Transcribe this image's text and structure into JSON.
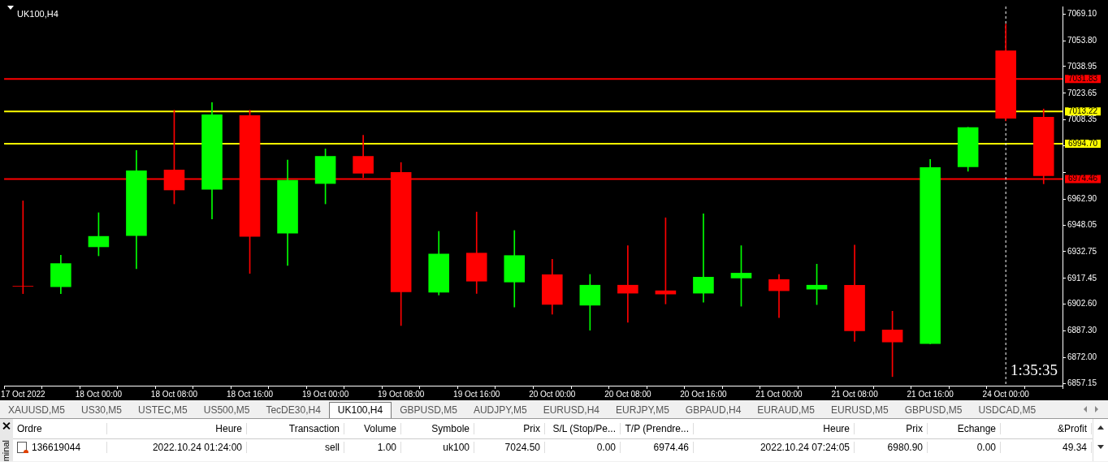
{
  "chart_data": {
    "type": "candlestick",
    "title": "UK100,H4",
    "categories": [
      "17 Oct 2022",
      null,
      "18 Oct 00:00",
      null,
      "18 Oct 08:00",
      null,
      "18 Oct 16:00",
      null,
      "19 Oct 00:00",
      null,
      "19 Oct 08:00",
      null,
      "19 Oct 16:00",
      null,
      "20 Oct 00:00",
      null,
      "20 Oct 08:00",
      null,
      "20 Oct 16:00",
      null,
      "21 Oct 00:00",
      null,
      "21 Oct 08:00",
      null,
      "21 Oct 16:00",
      null,
      "24 Oct 00:00",
      null
    ],
    "ohlc": [
      [
        6913.2,
        6961.9,
        6908.7,
        6912.8
      ],
      [
        6912.5,
        6930.7,
        6908.7,
        6926.1
      ],
      [
        6935.4,
        6955.1,
        6930.4,
        6941.7
      ],
      [
        6941.8,
        6990.8,
        6923.0,
        6979.3
      ],
      [
        6979.8,
        7013.9,
        6960.2,
        6968.0
      ],
      [
        6968.4,
        7018.3,
        6951.5,
        7011.4
      ],
      [
        7011.0,
        7013.9,
        6920.3,
        6941.4
      ],
      [
        6943.2,
        6985.3,
        6924.9,
        6973.8
      ],
      [
        6971.7,
        6991.7,
        6960.2,
        6987.6
      ],
      [
        6987.6,
        6999.5,
        6975.3,
        6977.6
      ],
      [
        6978.4,
        6983.9,
        6890.4,
        6909.6
      ],
      [
        6909.3,
        6944.4,
        6907.9,
        6931.6
      ],
      [
        6932.1,
        6955.5,
        6908.8,
        6915.7
      ],
      [
        6915.2,
        6944.9,
        6901.0,
        6930.7
      ],
      [
        6919.7,
        6928.4,
        6896.9,
        6902.4
      ],
      [
        6901.9,
        6919.7,
        6887.7,
        6913.7
      ],
      [
        6913.7,
        6936.2,
        6892.3,
        6908.8
      ],
      [
        6910.5,
        6952.2,
        6902.8,
        6908.3
      ],
      [
        6908.8,
        6954.5,
        6903.8,
        6918.3
      ],
      [
        6917.5,
        6936.2,
        6901.5,
        6920.6
      ],
      [
        6916.9,
        6919.7,
        6895.0,
        6910.2
      ],
      [
        6911.1,
        6925.6,
        6902.4,
        6913.7
      ],
      [
        6913.7,
        6936.6,
        6881.3,
        6887.2
      ],
      [
        6888.0,
        6898.6,
        6861.1,
        6880.8
      ],
      [
        6879.9,
        6985.7,
        6879.9,
        6981.2
      ],
      [
        6981.3,
        7004.1,
        6978.9,
        7004.1
      ],
      [
        7048.1,
        7063.3,
        7007.8,
        7009.1
      ],
      [
        7010.1,
        7014.6,
        6971.7,
        6976.2
      ]
    ],
    "colors": [
      "#ff0000",
      "#00ff00",
      "#00ff00",
      "#00ff00",
      "#ff0000",
      "#00ff00",
      "#ff0000",
      "#00ff00",
      "#00ff00",
      "#ff0000",
      "#ff0000",
      "#00ff00",
      "#ff0000",
      "#00ff00",
      "#ff0000",
      "#00ff00",
      "#ff0000",
      "#ff0000",
      "#00ff00",
      "#00ff00",
      "#ff0000",
      "#00ff00",
      "#ff0000",
      "#ff0000",
      "#00ff00",
      "#00ff00",
      "#ff0000",
      "#ff0000"
    ],
    "ylim": [
      6855.9,
      7073.4
    ],
    "yticks": [
      {
        "value": 7069.1,
        "label": "7069.10"
      },
      {
        "value": 7053.8,
        "label": "7053.80"
      },
      {
        "value": 7038.95,
        "label": "7038.95"
      },
      {
        "value": 7023.65,
        "label": "7023.65"
      },
      {
        "value": 7008.35,
        "label": "7008.35"
      },
      {
        "value": 6993.5,
        "label": null
      },
      {
        "value": 6978.2,
        "label": null
      },
      {
        "value": 6962.9,
        "label": "6962.90"
      },
      {
        "value": 6948.05,
        "label": "6948.05"
      },
      {
        "value": 6932.75,
        "label": "6932.75"
      },
      {
        "value": 6917.45,
        "label": "6917.45"
      },
      {
        "value": 6902.6,
        "label": "6902.60"
      },
      {
        "value": 6887.3,
        "label": "6887.30"
      },
      {
        "value": 6872.0,
        "label": "6872.00"
      },
      {
        "value": 6857.15,
        "label": "6857.15"
      }
    ],
    "ref_lines": [
      {
        "axis": "y",
        "value": 7031.83,
        "label": "7031.83",
        "color": "#ff0000"
      },
      {
        "axis": "y",
        "value": 7013.22,
        "label": "7013.22",
        "color": "#ffff00"
      },
      {
        "axis": "y",
        "value": 6994.7,
        "label": "6994.70",
        "color": "#ffff00"
      },
      {
        "axis": "y",
        "value": 6974.46,
        "label": "6974.46",
        "color": "#ff0000"
      },
      {
        "axis": "x",
        "value": "24 Oct 00:00",
        "color": "#ffffff",
        "line_style": "dashed"
      }
    ],
    "legend": false,
    "annotations": [
      "1:35:35",
      "minal",
      "XAUUSD,M5",
      "US30,M5",
      "USTEC,M5",
      "US500,M5",
      "TecDE30,H4",
      "UK100,H4",
      "GBPUSD,M5",
      "AUDJPY,M5",
      "EURUSD,H4",
      "EURJPY,M5",
      "GBPAUD,H4",
      "EURAUD,M5",
      "EURUSD,M5",
      "GBPUSD,M5",
      "USDCAD,M5",
      "Ordre",
      "Heure",
      "Transaction",
      "Volume",
      "Symbole",
      "Prix",
      "S/L (Stop/Pe...",
      "T/P (Prendre...",
      "Heure",
      "Prix",
      "Echange",
      "&Profit",
      "136619044",
      "2022.10.24 01:24:00",
      "sell",
      "1.00",
      "uk100",
      "7024.50",
      "0.00",
      "6974.46",
      "2022.10.24 07:24:05",
      "6980.90",
      "0.00",
      "49.34"
    ]
  }
}
